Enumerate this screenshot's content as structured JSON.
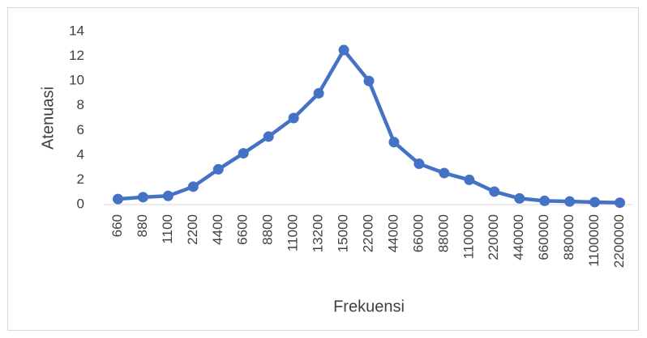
{
  "chart_data": {
    "type": "line",
    "x_label": "Frekuensi",
    "y_label": "Atenuasi",
    "categories": [
      "660",
      "880",
      "1100",
      "2200",
      "4400",
      "6600",
      "8800",
      "11000",
      "13200",
      "15000",
      "22000",
      "44000",
      "66000",
      "88000",
      "110000",
      "220000",
      "440000",
      "660000",
      "880000",
      "1100000",
      "2200000"
    ],
    "series": [
      {
        "color": "#4472c4",
        "values": [
          0.45,
          0.6,
          0.7,
          1.45,
          2.85,
          4.15,
          5.5,
          7.0,
          9.0,
          12.5,
          10.0,
          5.05,
          3.3,
          2.55,
          2.0,
          1.05,
          0.5,
          0.3,
          0.25,
          0.2,
          0.15
        ]
      }
    ],
    "ylim": [
      0,
      14
    ],
    "yticks": [
      0,
      2,
      4,
      6,
      8,
      10,
      12,
      14
    ],
    "grid": false
  }
}
